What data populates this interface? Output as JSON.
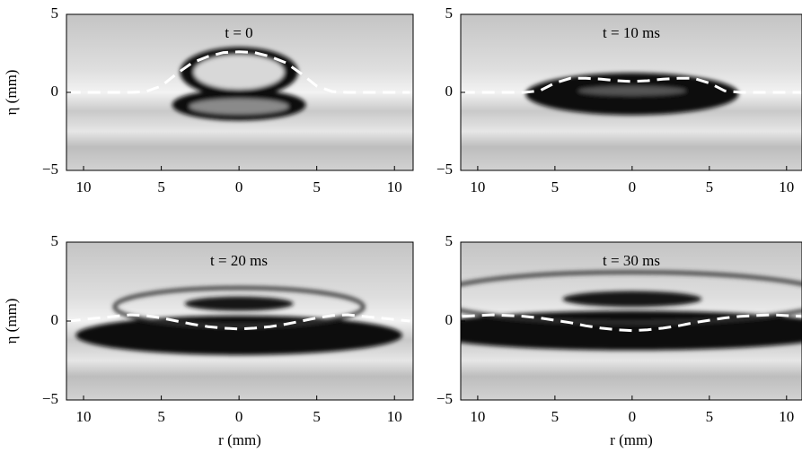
{
  "chart_data": [
    {
      "type": "line",
      "title": "t = 0",
      "ylabel": "η (mm)",
      "line_style": "dashed",
      "color": "#ffffff",
      "x": [
        -11,
        -9,
        -7,
        -6,
        -5,
        -4,
        -3,
        -2,
        -1,
        0,
        1,
        2,
        3,
        4,
        5,
        6,
        7,
        9,
        11
      ],
      "values": [
        0,
        0,
        0,
        0.05,
        0.4,
        1.2,
        1.9,
        2.3,
        2.55,
        2.6,
        2.55,
        2.3,
        1.9,
        1.2,
        0.4,
        0.05,
        0,
        0,
        0
      ],
      "xlim": [
        -11.1,
        11.2
      ],
      "ylim": [
        -5,
        5
      ],
      "xticks": [
        {
          "value": -10,
          "label": "10"
        },
        {
          "value": -5,
          "label": "5"
        },
        0,
        5,
        10
      ],
      "yticks": [
        {
          "value": -5,
          "label": "−5"
        },
        0,
        5
      ]
    },
    {
      "type": "line",
      "title": "t = 10 ms",
      "line_style": "dashed",
      "color": "#ffffff",
      "x": [
        -11,
        -9,
        -7,
        -6,
        -5,
        -4,
        -3,
        -2,
        -1,
        0,
        1,
        2,
        3,
        4,
        5,
        6,
        7,
        9,
        11
      ],
      "values": [
        0,
        0,
        0,
        0.1,
        0.6,
        0.9,
        0.9,
        0.85,
        0.75,
        0.7,
        0.75,
        0.85,
        0.9,
        0.9,
        0.6,
        0.1,
        0,
        0,
        0
      ],
      "xlim": [
        -11.1,
        11.0
      ],
      "ylim": [
        -5,
        5
      ],
      "xticks": [
        {
          "value": -10,
          "label": "10"
        },
        {
          "value": -5,
          "label": "5"
        },
        0,
        5,
        10
      ],
      "yticks": [
        {
          "value": -5,
          "label": "−5"
        },
        0,
        5
      ]
    },
    {
      "type": "line",
      "title": "t = 20 ms",
      "ylabel": "η (mm)",
      "xlabel": "r (mm)",
      "line_style": "dashed",
      "color": "#ffffff",
      "x": [
        -11,
        -9,
        -7,
        -6,
        -5,
        -4,
        -3,
        -2,
        -1,
        0,
        1,
        2,
        3,
        4,
        5,
        6,
        7,
        9,
        11
      ],
      "values": [
        0,
        0.2,
        0.4,
        0.35,
        0.2,
        0,
        -0.2,
        -0.35,
        -0.45,
        -0.5,
        -0.45,
        -0.35,
        -0.2,
        0,
        0.2,
        0.35,
        0.4,
        0.2,
        0
      ],
      "xlim": [
        -11.1,
        11.2
      ],
      "ylim": [
        -5,
        5
      ],
      "xticks": [
        {
          "value": -10,
          "label": "10"
        },
        {
          "value": -5,
          "label": "5"
        },
        0,
        5,
        10
      ],
      "yticks": [
        {
          "value": -5,
          "label": "−5"
        },
        0,
        5
      ]
    },
    {
      "type": "line",
      "title": "t = 30 ms",
      "xlabel": "r (mm)",
      "line_style": "dashed",
      "color": "#ffffff",
      "x": [
        -11,
        -9,
        -7,
        -6,
        -5,
        -4,
        -3,
        -2,
        -1,
        0,
        1,
        2,
        3,
        4,
        5,
        6,
        7,
        9,
        11
      ],
      "values": [
        0.3,
        0.4,
        0.3,
        0.2,
        0.05,
        -0.1,
        -0.3,
        -0.45,
        -0.55,
        -0.6,
        -0.55,
        -0.45,
        -0.3,
        -0.1,
        0.05,
        0.2,
        0.3,
        0.4,
        0.3
      ],
      "xlim": [
        -11.1,
        11.0
      ],
      "ylim": [
        -5,
        5
      ],
      "xticks": [
        {
          "value": -10,
          "label": "10"
        },
        {
          "value": -5,
          "label": "5"
        },
        0,
        5,
        10
      ],
      "yticks": [
        {
          "value": -5,
          "label": "−5"
        },
        0,
        5
      ]
    }
  ]
}
